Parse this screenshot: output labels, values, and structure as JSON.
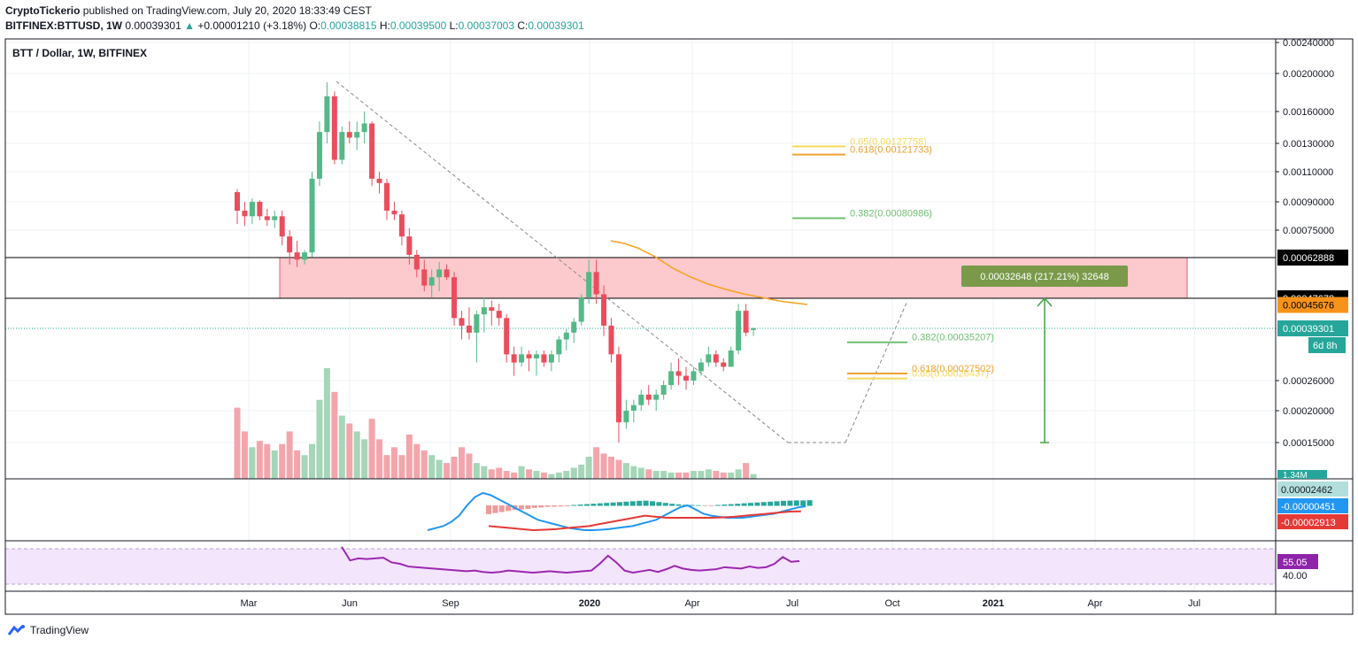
{
  "header": {
    "publisher": "CryptoTickerio",
    "published_text": " published on TradingView.com, July 20, 2020 18:33:49 CEST",
    "symbol": "BITFINEX:BTTUSD, 1W",
    "last": "0.00039301",
    "change": "+0.00001210 (+3.18%)",
    "o_label": "O:",
    "o": "0.00038815",
    "h_label": "H:",
    "h": "0.00039500",
    "l_label": "L:",
    "l": "0.00037003",
    "c_label": "C:",
    "c": "0.00039301"
  },
  "pane_title": "BTT / Dollar, 1W, BITFINEX",
  "footer": {
    "brand": "TradingView"
  },
  "colors": {
    "up": "#53b987",
    "down": "#eb4d5c",
    "vol_up": "#a5d6b7",
    "vol_down": "#f4a5ab",
    "ma": "#f7a21b",
    "macd": "#2196f3",
    "signal": "#e53935",
    "rsi": "#9c27b0",
    "zone": "#fcc9cc",
    "fib_green": "#6fbf73",
    "fib_orange": "#f0a030",
    "fib_yellow": "#f5d95a"
  },
  "chart_data": {
    "type": "candlestick",
    "title": "BTT / Dollar, 1W, BITFINEX",
    "y_axis_labels": [
      "0.00240000",
      "0.00200000",
      "0.00160000",
      "0.00130000",
      "0.00110000",
      "0.00090000",
      "0.00075000",
      "0.00062888",
      "0.00047678",
      "0.00045676",
      "0.00039301",
      "0.00026000",
      "0.00020000",
      "0.00015000"
    ],
    "y_ticks": [
      0.0024,
      0.002,
      0.0016,
      0.0013,
      0.0011,
      0.0009,
      0.00075,
      0.00026,
      0.0002,
      0.00015
    ],
    "x_axis_labels": [
      "Mar",
      "Jun",
      "Sep",
      "2020",
      "Apr",
      "Jul",
      "Oct",
      "2021",
      "Apr",
      "Jul"
    ],
    "candles": [
      {
        "o": 0.00096,
        "h": 0.00098,
        "l": 0.00078,
        "c": 0.00085
      },
      {
        "o": 0.00085,
        "h": 0.0009,
        "l": 0.00077,
        "c": 0.00082
      },
      {
        "o": 0.00082,
        "h": 0.00092,
        "l": 0.00078,
        "c": 0.0009
      },
      {
        "o": 0.0009,
        "h": 0.00091,
        "l": 0.0008,
        "c": 0.00082
      },
      {
        "o": 0.00082,
        "h": 0.00086,
        "l": 0.00077,
        "c": 0.0008
      },
      {
        "o": 0.0008,
        "h": 0.00085,
        "l": 0.00076,
        "c": 0.00082
      },
      {
        "o": 0.00082,
        "h": 0.00085,
        "l": 0.00068,
        "c": 0.00072
      },
      {
        "o": 0.00072,
        "h": 0.00075,
        "l": 0.0006,
        "c": 0.00065
      },
      {
        "o": 0.00065,
        "h": 0.0007,
        "l": 0.00059,
        "c": 0.00062
      },
      {
        "o": 0.00062,
        "h": 0.00066,
        "l": 0.0006,
        "c": 0.00065
      },
      {
        "o": 0.00065,
        "h": 0.0011,
        "l": 0.00063,
        "c": 0.00105
      },
      {
        "o": 0.00105,
        "h": 0.0015,
        "l": 0.001,
        "c": 0.0014
      },
      {
        "o": 0.0014,
        "h": 0.0019,
        "l": 0.0013,
        "c": 0.00175
      },
      {
        "o": 0.00175,
        "h": 0.0018,
        "l": 0.00115,
        "c": 0.00118
      },
      {
        "o": 0.00118,
        "h": 0.00145,
        "l": 0.00115,
        "c": 0.0014
      },
      {
        "o": 0.0014,
        "h": 0.0015,
        "l": 0.0013,
        "c": 0.00135
      },
      {
        "o": 0.00135,
        "h": 0.0015,
        "l": 0.00125,
        "c": 0.0014
      },
      {
        "o": 0.0014,
        "h": 0.0016,
        "l": 0.0013,
        "c": 0.00148
      },
      {
        "o": 0.00148,
        "h": 0.0015,
        "l": 0.001,
        "c": 0.00105
      },
      {
        "o": 0.00105,
        "h": 0.0011,
        "l": 0.00095,
        "c": 0.00102
      },
      {
        "o": 0.00102,
        "h": 0.00105,
        "l": 0.0008,
        "c": 0.00085
      },
      {
        "o": 0.00085,
        "h": 0.0009,
        "l": 0.0008,
        "c": 0.00083
      },
      {
        "o": 0.00083,
        "h": 0.00085,
        "l": 0.00068,
        "c": 0.00072
      },
      {
        "o": 0.00072,
        "h": 0.00076,
        "l": 0.0006,
        "c": 0.00064
      },
      {
        "o": 0.00064,
        "h": 0.00066,
        "l": 0.00055,
        "c": 0.00058
      },
      {
        "o": 0.00058,
        "h": 0.00062,
        "l": 0.0005,
        "c": 0.00052
      },
      {
        "o": 0.00052,
        "h": 0.00058,
        "l": 0.00048,
        "c": 0.00055
      },
      {
        "o": 0.00055,
        "h": 0.00061,
        "l": 0.0005,
        "c": 0.00058
      },
      {
        "o": 0.00058,
        "h": 0.0006,
        "l": 0.00054,
        "c": 0.00055
      },
      {
        "o": 0.00055,
        "h": 0.00057,
        "l": 0.0004,
        "c": 0.00042
      },
      {
        "o": 0.00042,
        "h": 0.00044,
        "l": 0.00036,
        "c": 0.0004
      },
      {
        "o": 0.0004,
        "h": 0.00045,
        "l": 0.00036,
        "c": 0.00038
      },
      {
        "o": 0.00038,
        "h": 0.00044,
        "l": 0.0003,
        "c": 0.00043
      },
      {
        "o": 0.00043,
        "h": 0.00048,
        "l": 0.00038,
        "c": 0.00045
      },
      {
        "o": 0.00045,
        "h": 0.00047,
        "l": 0.0004,
        "c": 0.00044
      },
      {
        "o": 0.00044,
        "h": 0.00046,
        "l": 0.0004,
        "c": 0.00042
      },
      {
        "o": 0.00042,
        "h": 0.00043,
        "l": 0.0003,
        "c": 0.00032
      },
      {
        "o": 0.00032,
        "h": 0.00034,
        "l": 0.00027,
        "c": 0.0003
      },
      {
        "o": 0.0003,
        "h": 0.00034,
        "l": 0.00029,
        "c": 0.00032
      },
      {
        "o": 0.00032,
        "h": 0.00033,
        "l": 0.00028,
        "c": 0.00031
      },
      {
        "o": 0.00031,
        "h": 0.00033,
        "l": 0.00027,
        "c": 0.00032
      },
      {
        "o": 0.00032,
        "h": 0.00033,
        "l": 0.00029,
        "c": 0.0003
      },
      {
        "o": 0.0003,
        "h": 0.00033,
        "l": 0.00028,
        "c": 0.00032
      },
      {
        "o": 0.00032,
        "h": 0.00037,
        "l": 0.0003,
        "c": 0.00036
      },
      {
        "o": 0.00036,
        "h": 0.00039,
        "l": 0.00033,
        "c": 0.00038
      },
      {
        "o": 0.00038,
        "h": 0.00042,
        "l": 0.00035,
        "c": 0.00041
      },
      {
        "o": 0.00041,
        "h": 0.00049,
        "l": 0.0004,
        "c": 0.00048
      },
      {
        "o": 0.00048,
        "h": 0.00062,
        "l": 0.00046,
        "c": 0.00057
      },
      {
        "o": 0.00057,
        "h": 0.00062,
        "l": 0.00046,
        "c": 0.00049
      },
      {
        "o": 0.00049,
        "h": 0.00052,
        "l": 0.00037,
        "c": 0.0004
      },
      {
        "o": 0.0004,
        "h": 0.00042,
        "l": 0.0003,
        "c": 0.00032
      },
      {
        "o": 0.00032,
        "h": 0.00034,
        "l": 0.00015,
        "c": 0.00018
      },
      {
        "o": 0.00018,
        "h": 0.00022,
        "l": 0.00017,
        "c": 0.0002
      },
      {
        "o": 0.0002,
        "h": 0.00022,
        "l": 0.00018,
        "c": 0.00021
      },
      {
        "o": 0.00021,
        "h": 0.00024,
        "l": 0.0002,
        "c": 0.00023
      },
      {
        "o": 0.00023,
        "h": 0.00025,
        "l": 0.00021,
        "c": 0.00022
      },
      {
        "o": 0.00022,
        "h": 0.00024,
        "l": 0.0002,
        "c": 0.00023
      },
      {
        "o": 0.00023,
        "h": 0.00026,
        "l": 0.00022,
        "c": 0.00025
      },
      {
        "o": 0.00025,
        "h": 0.0003,
        "l": 0.00024,
        "c": 0.00028
      },
      {
        "o": 0.00028,
        "h": 0.00031,
        "l": 0.00025,
        "c": 0.00027
      },
      {
        "o": 0.00027,
        "h": 0.00029,
        "l": 0.00024,
        "c": 0.00026
      },
      {
        "o": 0.00026,
        "h": 0.00029,
        "l": 0.00025,
        "c": 0.00028
      },
      {
        "o": 0.00028,
        "h": 0.00031,
        "l": 0.00027,
        "c": 0.0003
      },
      {
        "o": 0.0003,
        "h": 0.00034,
        "l": 0.00029,
        "c": 0.00032
      },
      {
        "o": 0.00032,
        "h": 0.00033,
        "l": 0.00029,
        "c": 0.0003
      },
      {
        "o": 0.0003,
        "h": 0.00031,
        "l": 0.00028,
        "c": 0.00029
      },
      {
        "o": 0.00029,
        "h": 0.00034,
        "l": 0.00029,
        "c": 0.00033
      },
      {
        "o": 0.00033,
        "h": 0.00046,
        "l": 0.00032,
        "c": 0.00044
      },
      {
        "o": 0.00044,
        "h": 0.00046,
        "l": 0.00037,
        "c": 0.00038
      },
      {
        "o": 0.000388,
        "h": 0.000395,
        "l": 0.00037,
        "c": 0.000393
      }
    ],
    "volume": [
      45,
      30,
      20,
      24,
      22,
      18,
      22,
      30,
      18,
      15,
      22,
      50,
      70,
      55,
      40,
      35,
      30,
      25,
      38,
      25,
      15,
      20,
      15,
      28,
      22,
      18,
      15,
      12,
      10,
      14,
      20,
      16,
      10,
      8,
      6,
      7,
      5,
      4,
      8,
      6,
      5,
      4,
      3,
      4,
      5,
      7,
      9,
      14,
      20,
      16,
      14,
      12,
      10,
      8,
      7,
      6,
      5,
      5,
      4,
      4,
      4,
      5,
      5,
      6,
      5,
      4,
      4,
      6,
      10,
      3
    ],
    "macd": [
      -0.00012,
      -0.00011,
      -0.0001,
      -8e-05,
      -5e-05,
      0.0,
      4e-05,
      6e-05,
      5e-05,
      3e-05,
      1e-05,
      -1e-05,
      -3e-05,
      -5e-05,
      -7e-05,
      -8e-05,
      -9e-05,
      -0.0001,
      -0.00011,
      -0.000115,
      -0.00012,
      -0.00012,
      -0.000118,
      -0.000115,
      -0.00011,
      -0.000105,
      -0.0001,
      -9e-05,
      -8e-05,
      -7e-05,
      -5e-05,
      -3e-05,
      -1e-05,
      0.0,
      -2e-05,
      -4e-05,
      -5e-05,
      -5.5e-05,
      -6e-05,
      -6e-05,
      -6e-05,
      -5.5e-05,
      -5e-05,
      -4.5e-05,
      -4e-05,
      -3e-05,
      -2e-05,
      -1e-05,
      -4.5e-06
    ],
    "signal": [
      -0.0001,
      -0.000105,
      -0.00011,
      -0.000115,
      -0.00012,
      -0.000118,
      -0.000115,
      -0.00011,
      -0.000105,
      -0.0001,
      -9e-05,
      -8e-05,
      -7e-05,
      -6e-05,
      -5e-05,
      -5.5e-05,
      -6e-05,
      -6e-05,
      -6e-05,
      -6e-05,
      -6e-05,
      -5.8e-05,
      -5.5e-05,
      -5e-05,
      -4.5e-05,
      -4e-05,
      -3.5e-05,
      -3e-05,
      -2.9e-05
    ],
    "macd_histogram": [
      -4e-05,
      -3.5e-05,
      -3e-05,
      -2.5e-05,
      -2e-05,
      -1.8e-05,
      -1.5e-05,
      -1e-05,
      -8e-06,
      -5e-06,
      -4e-06,
      -3e-06,
      -2e-06,
      2e-06,
      4e-06,
      6e-06,
      8e-06,
      1e-05,
      1.2e-05,
      1.4e-05,
      1.6e-05,
      1.8e-05,
      2e-05,
      2.2e-05,
      2.3e-05,
      2e-05,
      1.6e-05,
      1.2e-05,
      8e-06,
      5e-06,
      3e-06,
      2e-06,
      1e-06,
      -1e-06,
      -1e-06,
      2e-06,
      4e-06,
      6e-06,
      8e-06,
      1e-05,
      1.2e-05,
      1.4e-05,
      1.6e-05,
      1.8e-05,
      2e-05,
      2.2e-05,
      2.3e-05,
      2.4e-05,
      2.4e-05,
      2.5e-05
    ],
    "rsi": [
      95,
      75,
      78,
      77,
      78,
      79,
      72,
      70,
      66,
      65,
      64,
      63,
      62,
      61,
      60,
      59,
      60,
      58,
      57,
      58,
      60,
      59,
      58,
      57,
      58,
      59,
      58,
      57,
      58,
      59,
      60,
      70,
      82,
      72,
      60,
      57,
      59,
      61,
      58,
      62,
      67,
      63,
      61,
      60,
      61,
      62,
      65,
      64,
      63,
      66,
      64,
      65,
      70,
      80,
      73,
      74
    ],
    "rsi_labels": [
      "55.05",
      "40.00"
    ],
    "macd_labels": [
      "0.00002462",
      "-0.00000451",
      "-0.00002913"
    ],
    "volume_label": "1.34M",
    "fib_levels": [
      {
        "label": "0.65(0.00127758)",
        "value": 0.00127758
      },
      {
        "label": "0.618(0.00121733)",
        "value": 0.00121733
      },
      {
        "label": "0.382(0.00080986)",
        "value": 0.00080986
      },
      {
        "label": "0.382(0.00035207)",
        "value": 0.00035207
      },
      {
        "label": "0.618(0.00027502)",
        "value": 0.00027502
      },
      {
        "label": "0.65(0.00026437)",
        "value": 0.00026437
      }
    ],
    "resistance_zone": {
      "top": 0.00062888,
      "bottom": 0.00047678
    },
    "measure_label": "0.00032648 (217.21%) 32648",
    "countdown": "6d 8h"
  }
}
